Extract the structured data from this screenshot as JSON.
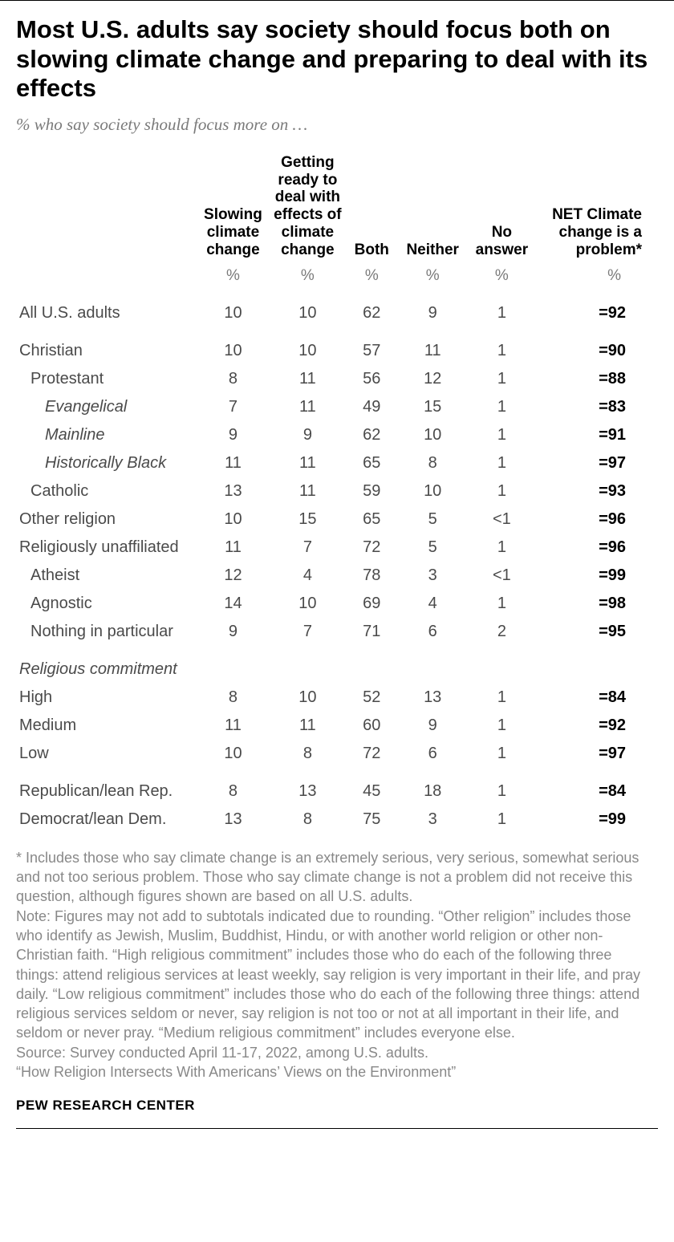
{
  "title": "Most U.S. adults say society should focus both on slowing climate change and preparing to deal with its effects",
  "subtitle": "% who say society should focus more on …",
  "columns": {
    "c1": "Slowing climate change",
    "c2": "Getting ready to deal with effects of climate change",
    "c3": "Both",
    "c4": "Neither",
    "c5": "No answer",
    "c6": "NET Climate change is a problem*"
  },
  "pct": "%",
  "rows": [
    {
      "label": "All U.S. adults",
      "indent": 0,
      "gap": "gap2",
      "v": [
        "10",
        "10",
        "62",
        "9",
        "1"
      ],
      "net": "=92"
    },
    {
      "label": "Christian",
      "indent": 0,
      "gap": "gap",
      "v": [
        "10",
        "10",
        "57",
        "11",
        "1"
      ],
      "net": "=90"
    },
    {
      "label": "Protestant",
      "indent": 1,
      "v": [
        "8",
        "11",
        "56",
        "12",
        "1"
      ],
      "net": "=88"
    },
    {
      "label": "Evangelical",
      "indent": 2,
      "v": [
        "7",
        "11",
        "49",
        "15",
        "1"
      ],
      "net": "=83"
    },
    {
      "label": "Mainline",
      "indent": 2,
      "v": [
        "9",
        "9",
        "62",
        "10",
        "1"
      ],
      "net": "=91"
    },
    {
      "label": "Historically Black",
      "indent": 2,
      "v": [
        "11",
        "11",
        "65",
        "8",
        "1"
      ],
      "net": "=97"
    },
    {
      "label": "Catholic",
      "indent": 1,
      "v": [
        "13",
        "11",
        "59",
        "10",
        "1"
      ],
      "net": "=93"
    },
    {
      "label": "Other religion",
      "indent": 0,
      "v": [
        "10",
        "15",
        "65",
        "5",
        "<1"
      ],
      "net": "=96"
    },
    {
      "label": "Religiously unaffiliated",
      "indent": 0,
      "v": [
        "11",
        "7",
        "72",
        "5",
        "1"
      ],
      "net": "=96"
    },
    {
      "label": "Atheist",
      "indent": 1,
      "v": [
        "12",
        "4",
        "78",
        "3",
        "<1"
      ],
      "net": "=99"
    },
    {
      "label": "Agnostic",
      "indent": 1,
      "v": [
        "14",
        "10",
        "69",
        "4",
        "1"
      ],
      "net": "=98"
    },
    {
      "label": "Nothing in particular",
      "indent": 1,
      "v": [
        "9",
        "7",
        "71",
        "6",
        "2"
      ],
      "net": "=95"
    },
    {
      "section": "Religious commitment"
    },
    {
      "label": "High",
      "indent": 0,
      "v": [
        "8",
        "10",
        "52",
        "13",
        "1"
      ],
      "net": "=84"
    },
    {
      "label": "Medium",
      "indent": 0,
      "v": [
        "11",
        "11",
        "60",
        "9",
        "1"
      ],
      "net": "=92"
    },
    {
      "label": "Low",
      "indent": 0,
      "v": [
        "10",
        "8",
        "72",
        "6",
        "1"
      ],
      "net": "=97"
    },
    {
      "label": "Republican/lean Rep.",
      "indent": 0,
      "gap": "gap",
      "v": [
        "8",
        "13",
        "45",
        "18",
        "1"
      ],
      "net": "=84"
    },
    {
      "label": "Democrat/lean Dem.",
      "indent": 0,
      "v": [
        "13",
        "8",
        "75",
        "3",
        "1"
      ],
      "net": "=99"
    }
  ],
  "footnote": "* Includes those who say climate change is an extremely serious, very serious, somewhat serious and not too serious problem. Those who say climate change is not a problem did not receive this question, although figures shown are based on all U.S. adults.\nNote: Figures may not add to subtotals indicated due to rounding. “Other religion” includes those who identify as Jewish, Muslim, Buddhist, Hindu, or with another world religion or other non-Christian faith. “High religious commitment” includes those who do each of the following three things: attend religious services at least weekly, say religion is very important in their life, and pray daily. “Low religious commitment” includes those who do each of the following three things: attend religious services seldom or never, say religion is not too or not at all important in their life, and seldom or never pray. “Medium religious commitment” includes everyone else.\nSource: Survey conducted April 11-17, 2022, among U.S. adults.\n“How Religion Intersects With Americans’ Views on the Environment”",
  "attrib": "PEW RESEARCH CENTER",
  "style": {
    "text_color": "#4a4a4a",
    "muted_color": "#7a7a7a",
    "foot_color": "#888888",
    "bg": "#ffffff",
    "title_fontsize": 31,
    "body_fontsize": 20,
    "foot_fontsize": 18
  }
}
